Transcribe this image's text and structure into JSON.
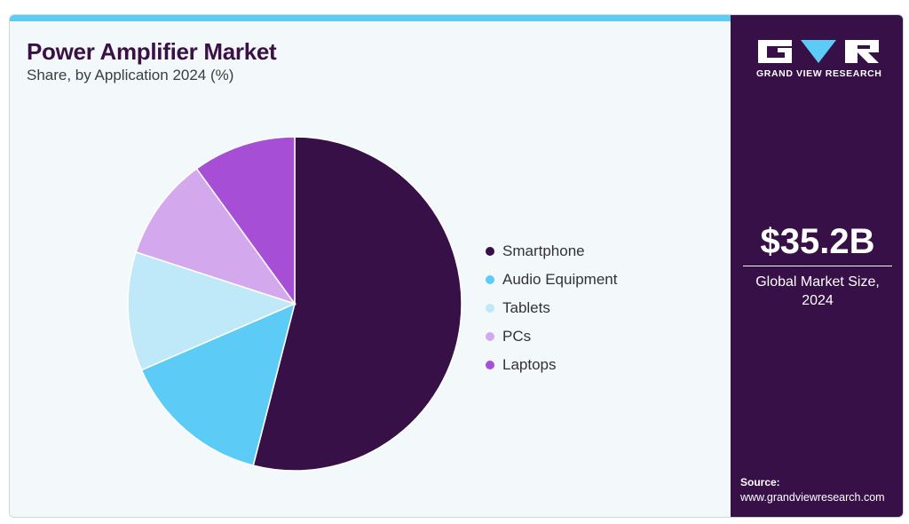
{
  "header": {
    "title": "Power Amplifier Market",
    "subtitle": "Share, by Application 2024 (%)"
  },
  "chart_data": {
    "type": "pie",
    "title": "Power Amplifier Market",
    "subtitle": "Share, by Application 2024 (%)",
    "labels": [
      "Smartphone",
      "Audio Equipment",
      "Tablets",
      "PCs",
      "Laptops"
    ],
    "values": [
      54.0,
      14.5,
      11.5,
      10.0,
      10.0
    ],
    "colors": [
      "#361047",
      "#5ccbf5",
      "#bfe9f9",
      "#d4a8ec",
      "#a64fd6"
    ],
    "start_angle": "12 o'clock",
    "direction": "clockwise",
    "legend_position": "right"
  },
  "sidebar": {
    "brand": "GRAND VIEW RESEARCH",
    "market_size": "$35.2B",
    "market_size_caption_line1": "Global Market Size,",
    "market_size_caption_line2": "2024",
    "source_label": "Source:",
    "source_url": "www.grandviewresearch.com"
  },
  "colors": {
    "accent": "#5ccbf5",
    "brand_dark": "#361047",
    "panel_bg": "#f3f8fb"
  }
}
